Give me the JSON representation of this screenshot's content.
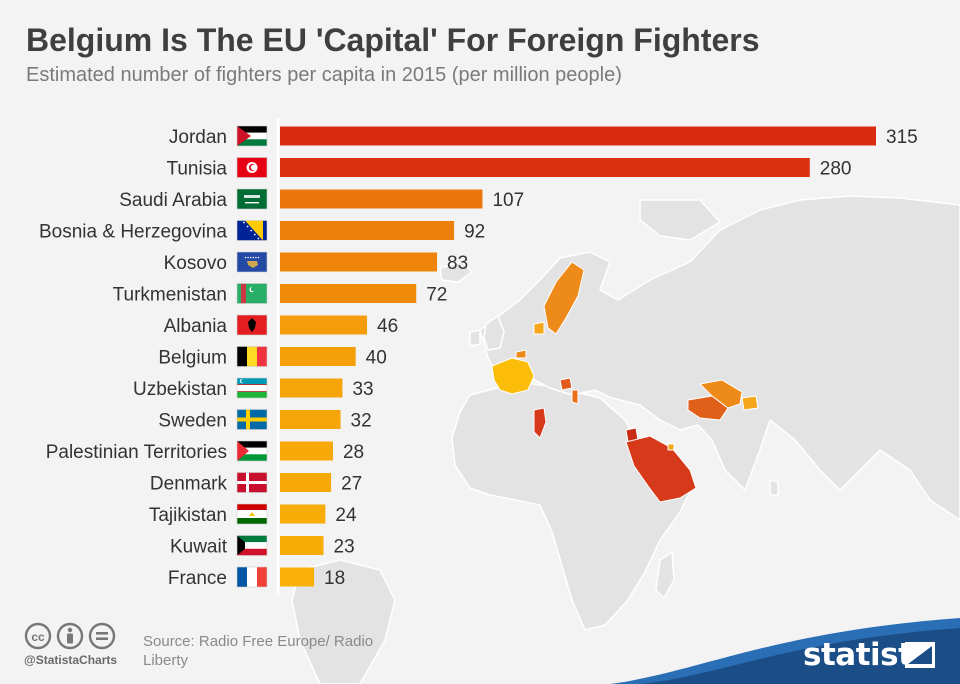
{
  "title": "Belgium Is The EU 'Capital' For Foreign Fighters",
  "subtitle": "Estimated number of fighters per capita in 2015 (per million people)",
  "footer": {
    "source": "Source: Radio Free Europe/ Radio Liberty",
    "handle": "@StatistaCharts",
    "brand": "statista"
  },
  "colors": {
    "bar_high": "#da2b10",
    "bar_low": "#fbbd07",
    "text": "#333333",
    "map_land": "#e3e3e3",
    "map_highlight_dark": "#d63a1a",
    "map_highlight_mid": "#ee8a1a",
    "map_highlight_light": "#f6a61a",
    "brand_blue": "#1b4d86"
  },
  "chart_data": {
    "type": "bar",
    "orientation": "horizontal",
    "title": "Belgium Is The EU 'Capital' For Foreign Fighters",
    "subtitle": "Estimated number of fighters per capita in 2015 (per million people)",
    "categories": [
      "Jordan",
      "Tunisia",
      "Saudi Arabia",
      "Bosnia & Herzegovina",
      "Kosovo",
      "Turkmenistan",
      "Albania",
      "Belgium",
      "Uzbekistan",
      "Sweden",
      "Palestinian Territories",
      "Denmark",
      "Tajikistan",
      "Kuwait",
      "France"
    ],
    "values": [
      315,
      280,
      107,
      92,
      83,
      72,
      46,
      40,
      33,
      32,
      28,
      27,
      24,
      23,
      18
    ],
    "flags": [
      "jordan-flag-icon",
      "tunisia-flag-icon",
      "saudi-arabia-flag-icon",
      "bosnia-herzegovina-flag-icon",
      "kosovo-flag-icon",
      "turkmenistan-flag-icon",
      "albania-flag-icon",
      "belgium-flag-icon",
      "uzbekistan-flag-icon",
      "sweden-flag-icon",
      "palestinian-territories-flag-icon",
      "denmark-flag-icon",
      "tajikistan-flag-icon",
      "kuwait-flag-icon",
      "france-flag-icon"
    ],
    "xlim": [
      0,
      315
    ],
    "grid": false,
    "legend": "none",
    "data_labels": true
  }
}
